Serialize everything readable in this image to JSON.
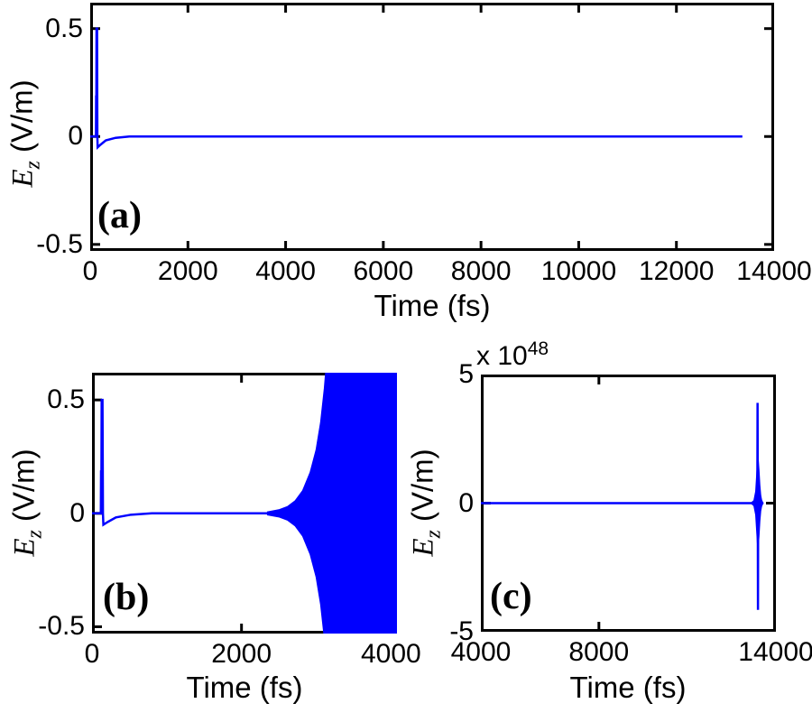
{
  "figure": {
    "background_color": "#ffffff",
    "axis_color": "#000000",
    "line_color": "#0000ff"
  },
  "chart_data": [
    {
      "panel": "a",
      "type": "line",
      "color": "#0000ff",
      "xlabel": "Time (fs)",
      "ylabel": {
        "var": "E",
        "sub": "z",
        "unit": " (V/m)"
      },
      "annotation": "(a)",
      "xlim": [
        0,
        14000
      ],
      "ylim": [
        -0.53,
        0.62
      ],
      "grid": false,
      "xticks": {
        "values": [
          0,
          2000,
          4000,
          6000,
          8000,
          10000,
          12000,
          14000
        ],
        "labels": [
          "0",
          "2000",
          "4000",
          "6000",
          "8000",
          "10000",
          "12000",
          "14000"
        ]
      },
      "yticks": {
        "values": [
          0.5,
          0,
          -0.5
        ],
        "labels": [
          "0.5",
          "0",
          "-0.5"
        ]
      },
      "lines": [
        [
          [
            0,
            0
          ],
          [
            118,
            0
          ],
          [
            121,
            0.185
          ],
          [
            126,
            0.185
          ],
          [
            129,
            0.5
          ],
          [
            140,
            0.5
          ],
          [
            146,
            0
          ],
          [
            152,
            -0.05
          ],
          [
            210,
            -0.038
          ],
          [
            320,
            -0.018
          ],
          [
            520,
            -0.006
          ],
          [
            800,
            0
          ],
          [
            13350,
            0
          ]
        ]
      ]
    },
    {
      "panel": "b",
      "type": "line",
      "color": "#0000ff",
      "xlabel": "Time (fs)",
      "ylabel": {
        "var": "E",
        "sub": "z",
        "unit": " (V/m)"
      },
      "annotation": "(b)",
      "xlim": [
        0,
        4080
      ],
      "ylim": [
        -0.53,
        0.62
      ],
      "grid": false,
      "xticks": {
        "values": [
          0,
          2000,
          4000
        ],
        "labels": [
          "0",
          "2000",
          "4000"
        ]
      },
      "yticks": {
        "values": [
          0.5,
          0,
          -0.5
        ],
        "labels": [
          "0.5",
          "0",
          "-0.5"
        ]
      },
      "lines": [
        [
          [
            0,
            0
          ],
          [
            118,
            0
          ],
          [
            121,
            0.185
          ],
          [
            126,
            0.185
          ],
          [
            129,
            0.5
          ],
          [
            140,
            0.5
          ],
          [
            146,
            0
          ],
          [
            152,
            -0.05
          ],
          [
            210,
            -0.038
          ],
          [
            320,
            -0.018
          ],
          [
            520,
            -0.006
          ],
          [
            800,
            0
          ],
          [
            2350,
            0
          ]
        ]
      ],
      "envelope": [
        [
          2350,
          0.006
        ],
        [
          2500,
          0.015
        ],
        [
          2620,
          0.03
        ],
        [
          2720,
          0.055
        ],
        [
          2820,
          0.1
        ],
        [
          2920,
          0.18
        ],
        [
          3000,
          0.28
        ],
        [
          3060,
          0.4
        ],
        [
          3110,
          0.55
        ],
        [
          3160,
          0.75
        ],
        [
          3200,
          1.0
        ],
        [
          4080,
          1.0
        ]
      ]
    },
    {
      "panel": "c",
      "type": "line",
      "color": "#0000ff",
      "xlabel": "Time (fs)",
      "ylabel": {
        "var": "E",
        "sub": "z",
        "unit": " (V/m)"
      },
      "annotation": "(c)",
      "exponent": {
        "prefix": "x 10",
        "value": "48"
      },
      "xlim": [
        4000,
        14000
      ],
      "ylim": [
        -5,
        5
      ],
      "grid": false,
      "xticks": {
        "values": [
          4000,
          8000,
          14000
        ],
        "labels": [
          "4000",
          "8000",
          "14000"
        ]
      },
      "yticks": {
        "values": [
          5,
          0,
          -5
        ],
        "labels": [
          "5",
          "0",
          "-5"
        ]
      },
      "lines": [
        [
          [
            4000,
            0
          ],
          [
            13560,
            0
          ]
        ],
        [
          [
            13370,
            0
          ],
          [
            13378,
            3.9
          ],
          [
            13386,
            0
          ],
          [
            13392,
            -4.15
          ],
          [
            13398,
            0
          ]
        ]
      ],
      "envelope": [
        [
          13180,
          0.02
        ],
        [
          13260,
          0.1
        ],
        [
          13320,
          0.45
        ],
        [
          13360,
          1.2
        ],
        [
          13390,
          1.75
        ],
        [
          13420,
          1.3
        ],
        [
          13450,
          0.7
        ],
        [
          13480,
          0.3
        ],
        [
          13510,
          0.12
        ],
        [
          13540,
          0.04
        ],
        [
          13560,
          0.01
        ]
      ]
    }
  ]
}
